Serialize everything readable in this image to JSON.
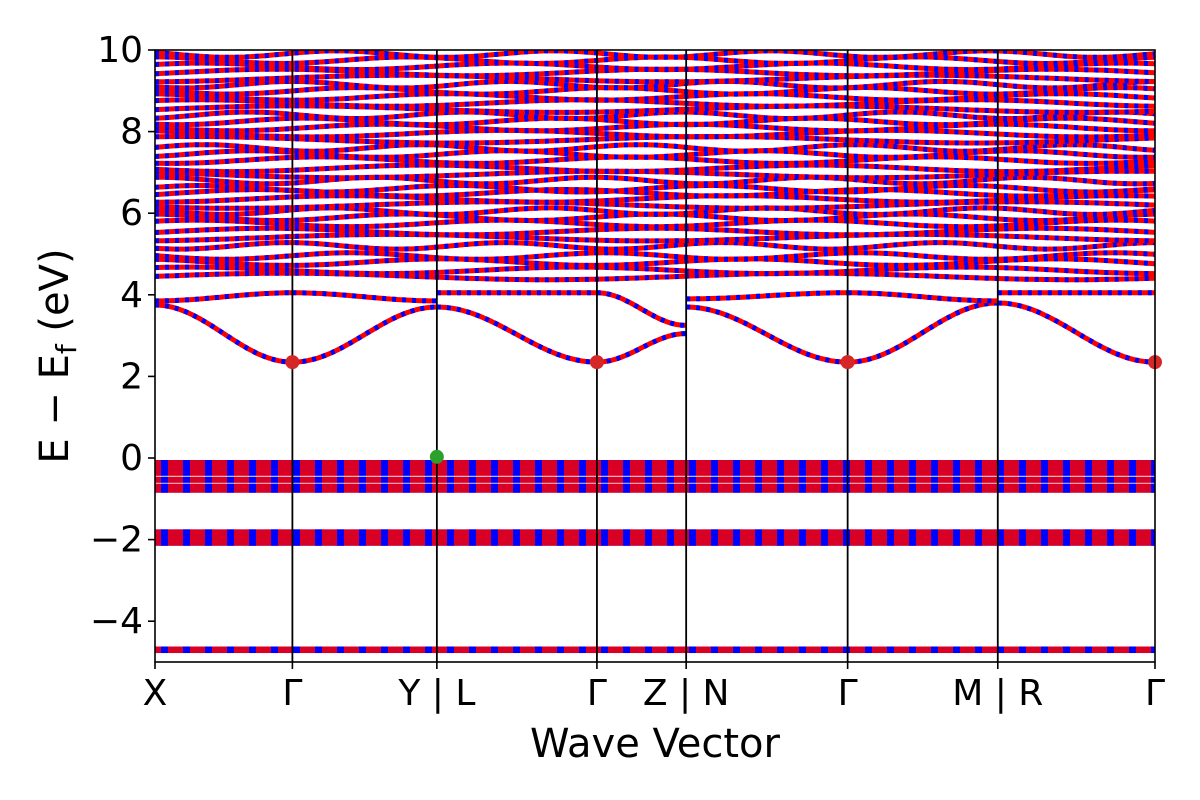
{
  "chart_data": {
    "type": "line",
    "xlabel": "Wave Vector",
    "ylabel": "E − E_f (eV)",
    "ylabel_main": "E − E",
    "ylabel_sub": "f",
    "ylabel_unit": " (eV)",
    "ylim": [
      -5,
      10
    ],
    "yticks": [
      -4,
      -2,
      0,
      2,
      4,
      6,
      8,
      10
    ],
    "ytick_labels": [
      "−4",
      "−2",
      "0",
      "2",
      "4",
      "6",
      "8",
      "10"
    ],
    "xlim": [
      0,
      7.06
    ],
    "kpoints": [
      {
        "label": "X",
        "x": 0.0
      },
      {
        "label": "Γ",
        "x": 0.97
      },
      {
        "label": "Y | L",
        "x": 1.99
      },
      {
        "label": "Γ",
        "x": 3.12
      },
      {
        "label": "Z | N",
        "x": 3.75
      },
      {
        "label": "Γ",
        "x": 4.89
      },
      {
        "label": "M | R",
        "x": 5.95
      },
      {
        "label": "Γ",
        "x": 7.06
      }
    ],
    "series": [
      {
        "color": "#ff0000"
      },
      {
        "color": "#0000ff"
      }
    ],
    "markers": [
      {
        "x": 0.97,
        "y": 2.35,
        "color": "#d62728"
      },
      {
        "x": 3.12,
        "y": 2.35,
        "color": "#d62728"
      },
      {
        "x": 4.89,
        "y": 2.35,
        "color": "#d62728"
      },
      {
        "x": 7.06,
        "y": 2.35,
        "color": "#d62728"
      },
      {
        "x": 1.99,
        "y": 0.03,
        "color": "#2ca02c"
      }
    ],
    "conduction_band": {
      "segments": [
        {
          "x": [
            0.0,
            0.97
          ],
          "y": [
            3.75,
            2.35
          ]
        },
        {
          "x": [
            0.97,
            1.99
          ],
          "y": [
            2.35,
            3.7
          ]
        },
        {
          "x": [
            1.99,
            3.12
          ],
          "y": [
            3.7,
            2.35
          ]
        },
        {
          "x": [
            3.12,
            3.75
          ],
          "y": [
            2.35,
            3.05
          ]
        },
        {
          "x": [
            3.75,
            4.89
          ],
          "y": [
            3.7,
            2.35
          ]
        },
        {
          "x": [
            4.89,
            5.95
          ],
          "y": [
            2.35,
            3.8
          ]
        },
        {
          "x": [
            5.95,
            7.06
          ],
          "y": [
            3.8,
            2.35
          ]
        }
      ],
      "second": [
        {
          "x": [
            0.0,
            0.97
          ],
          "y": [
            3.85,
            4.05
          ]
        },
        {
          "x": [
            0.97,
            1.99
          ],
          "y": [
            4.05,
            3.85
          ]
        },
        {
          "x": [
            1.99,
            3.12
          ],
          "y": [
            4.05,
            4.05
          ]
        },
        {
          "x": [
            3.12,
            3.75
          ],
          "y": [
            4.05,
            3.25
          ]
        },
        {
          "x": [
            3.75,
            4.89
          ],
          "y": [
            3.9,
            4.05
          ]
        },
        {
          "x": [
            4.89,
            5.95
          ],
          "y": [
            4.05,
            3.85
          ]
        },
        {
          "x": [
            5.95,
            7.06
          ],
          "y": [
            4.05,
            4.05
          ]
        }
      ]
    },
    "flat_bands": [
      4.45,
      4.6,
      4.8,
      4.95,
      5.2,
      5.4,
      5.55,
      5.75,
      5.9,
      6.05,
      6.2,
      6.35,
      6.5,
      6.6,
      6.8,
      6.95,
      7.1,
      7.3,
      7.45,
      7.6,
      7.8,
      7.95,
      8.1,
      8.25,
      8.4,
      8.55,
      8.7,
      8.85,
      9.0,
      9.15,
      9.3,
      9.45,
      9.6,
      9.75,
      9.9
    ],
    "valence_blocks": [
      {
        "from": -0.85,
        "to": -0.05
      },
      {
        "from": -2.15,
        "to": -1.75
      },
      {
        "from": -4.78,
        "to": -4.62
      }
    ]
  }
}
